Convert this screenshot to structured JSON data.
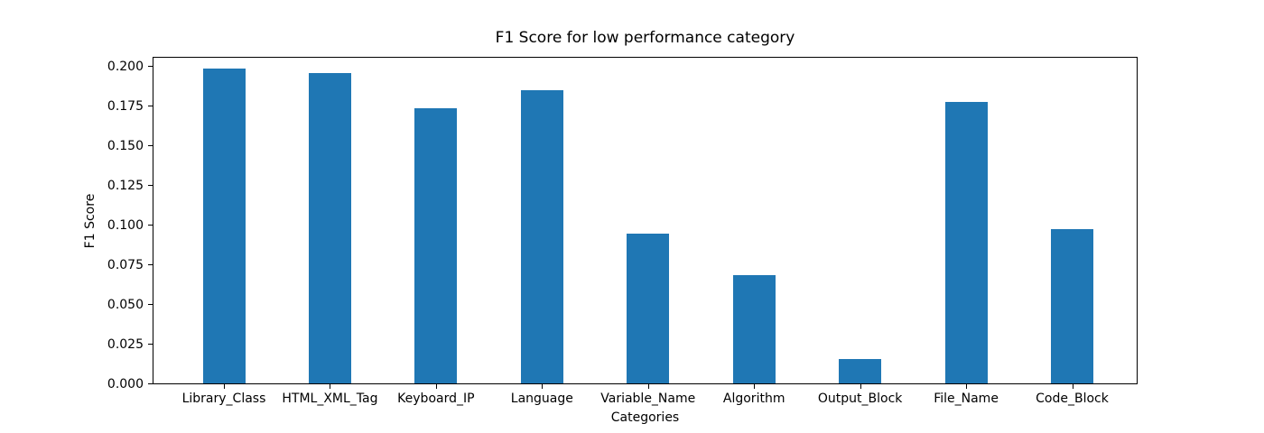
{
  "chart_data": {
    "type": "bar",
    "title": "F1 Score for low performance category",
    "xlabel": "Categories",
    "ylabel": "F1 Score",
    "categories": [
      "Library_Class",
      "HTML_XML_Tag",
      "Keyboard_IP",
      "Language",
      "Variable_Name",
      "Algorithm",
      "Output_Block",
      "File_Name",
      "Code_Block"
    ],
    "values": [
      0.199,
      0.196,
      0.174,
      0.185,
      0.095,
      0.069,
      0.016,
      0.178,
      0.098
    ],
    "ytick_values": [
      0.0,
      0.025,
      0.05,
      0.075,
      0.1,
      0.125,
      0.15,
      0.175,
      0.2
    ],
    "ytick_labels": [
      "0.000",
      "0.025",
      "0.050",
      "0.075",
      "0.100",
      "0.125",
      "0.150",
      "0.175",
      "0.200"
    ],
    "ylim": [
      0,
      0.20625
    ],
    "bar_color": "#1f77b4",
    "background": "#ffffff",
    "text_color": "#000000",
    "grid": false,
    "legend": false
  }
}
